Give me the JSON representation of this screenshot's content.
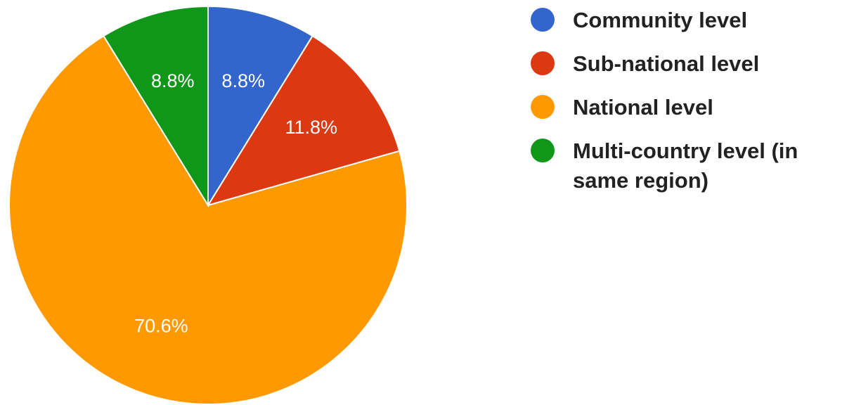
{
  "chart_data": {
    "type": "pie",
    "categories": [
      "Community level",
      "Sub-national level",
      "National level",
      "Multi-country level (in same region)"
    ],
    "values": [
      8.8,
      11.8,
      70.6,
      8.8
    ],
    "value_labels": [
      "8.8%",
      "11.8%",
      "70.6%",
      "8.8%"
    ],
    "colors": [
      "#3366cc",
      "#dc3912",
      "#ff9900",
      "#109618"
    ],
    "start_angle_deg": 0,
    "direction": "clockwise",
    "legend_position": "right"
  },
  "legend": {
    "items": [
      {
        "label": "Community level",
        "color": "#3366cc"
      },
      {
        "label": "Sub-national level",
        "color": "#dc3912"
      },
      {
        "label": "National level",
        "color": "#ff9900"
      },
      {
        "label": "Multi-country level (in same region)",
        "color": "#109618"
      }
    ]
  }
}
